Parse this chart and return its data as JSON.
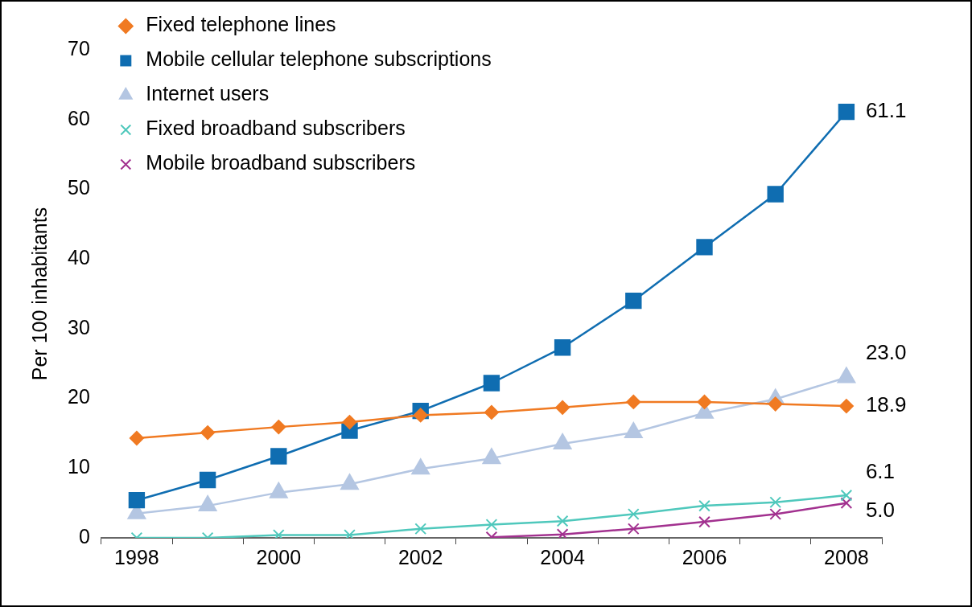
{
  "chart_data": {
    "type": "line",
    "ylabel": "Per 100 inhabitants",
    "categories": [
      "1998",
      null,
      "2000",
      null,
      "2002",
      null,
      "2004",
      null,
      "2006",
      null,
      "2008"
    ],
    "ylim": [
      0,
      70
    ],
    "yticks": [
      0,
      10,
      20,
      30,
      40,
      50,
      60,
      70
    ],
    "grid": false,
    "legend": "top left",
    "series": [
      {
        "name": "Fixed telephone lines",
        "color": "#f07a22",
        "marker": "diamond",
        "values": [
          14.3,
          15.1,
          15.9,
          16.6,
          17.6,
          18.0,
          18.7,
          19.5,
          19.5,
          19.2,
          18.9
        ],
        "value_labels": [
          null,
          null,
          null,
          null,
          null,
          null,
          null,
          null,
          null,
          null,
          "18.9"
        ]
      },
      {
        "name": "Mobile cellular telephone subscriptions",
        "color": "#0f6db1",
        "marker": "square",
        "values": [
          5.4,
          8.3,
          11.7,
          15.4,
          18.2,
          22.2,
          27.3,
          34.0,
          41.7,
          49.3,
          61.1
        ],
        "value_labels": [
          null,
          null,
          null,
          null,
          null,
          null,
          null,
          null,
          null,
          null,
          "61.1"
        ]
      },
      {
        "name": "Internet users",
        "color": "#b4c6e2",
        "marker": "triangle",
        "values": [
          3.5,
          4.6,
          6.5,
          7.7,
          9.9,
          11.4,
          13.5,
          15.1,
          17.9,
          19.9,
          23.0
        ],
        "value_labels": [
          null,
          null,
          null,
          null,
          null,
          null,
          null,
          null,
          null,
          null,
          "23.0"
        ]
      },
      {
        "name": "Fixed broadband subscribers",
        "color": "#4fc8bc",
        "marker": "cross",
        "values": [
          0,
          0,
          0.4,
          0.4,
          1.3,
          1.9,
          2.4,
          3.4,
          4.6,
          5.1,
          6.1
        ],
        "value_labels": [
          null,
          null,
          null,
          null,
          null,
          null,
          null,
          null,
          null,
          null,
          "6.1"
        ]
      },
      {
        "name": "Mobile broadband subscribers",
        "color": "#a2318f",
        "marker": "cross",
        "values": [
          null,
          null,
          null,
          null,
          null,
          0.1,
          0.5,
          1.3,
          2.3,
          3.4,
          5.0
        ],
        "value_labels": [
          null,
          null,
          null,
          null,
          null,
          null,
          null,
          null,
          null,
          null,
          "5.0"
        ]
      }
    ]
  }
}
